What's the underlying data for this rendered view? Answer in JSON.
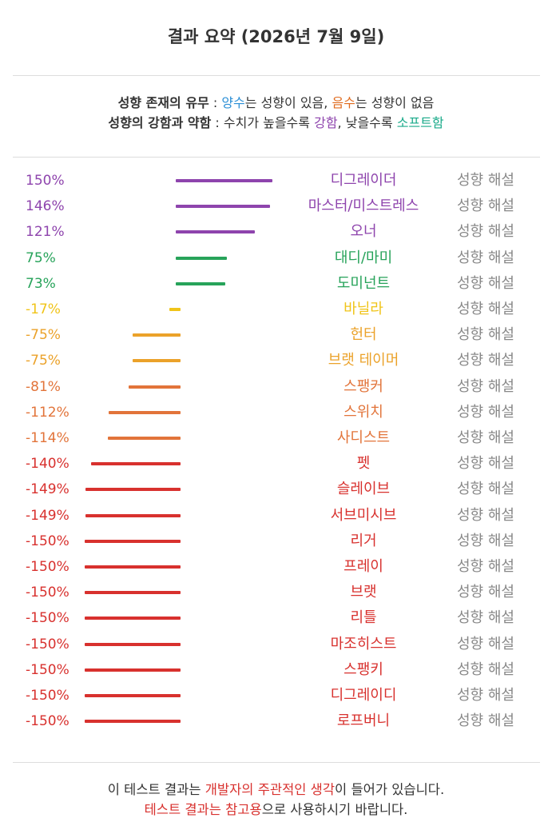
{
  "header": {
    "title": "결과 요약 (2026년 7월 9일)"
  },
  "legend": {
    "line1": {
      "label": "성향 존재의 유무",
      "sep": " : ",
      "positive": "양수",
      "positive_desc": "는 성향이 있음, ",
      "negative": "음수",
      "negative_desc": "는 성향이 없음"
    },
    "line2": {
      "label": "성향의 강함과 약함",
      "sep": " : ",
      "desc1": "수치가 높을수록 ",
      "strong": "강함",
      "desc2": ", 낮을수록 ",
      "soft": "소프트함"
    }
  },
  "explain_label": "성향 해설",
  "chart_data": {
    "type": "bar",
    "orientation": "horizontal-diverging",
    "categories": [
      "디그레이더",
      "마스터/미스트레스",
      "오너",
      "대디/마미",
      "도미넌트",
      "바닐라",
      "헌터",
      "브랫 테이머",
      "스팽커",
      "스위치",
      "사디스트",
      "펫",
      "슬레이브",
      "서브미시브",
      "리거",
      "프레이",
      "브랫",
      "리틀",
      "마조히스트",
      "스팽키",
      "디그레이디",
      "로프버니"
    ],
    "labels": [
      "150%",
      "146%",
      "121%",
      "75%",
      "73%",
      "-17%",
      "-75%",
      "-75%",
      "-81%",
      "-112%",
      "-114%",
      "-140%",
      "-149%",
      "-149%",
      "-150%",
      "-150%",
      "-150%",
      "-150%",
      "-150%",
      "-150%",
      "-150%",
      "-150%"
    ],
    "values": [
      150,
      146,
      121,
      75,
      73,
      -17,
      -75,
      -75,
      -81,
      -112,
      -114,
      -140,
      -149,
      -149,
      -150,
      -150,
      -150,
      -150,
      -150,
      -150,
      -150,
      -150
    ],
    "colors": [
      "#8e44ad",
      "#8e44ad",
      "#8e44ad",
      "#27a35a",
      "#27a35a",
      "#f0c419",
      "#eba22a",
      "#eba22a",
      "#e2743a",
      "#e2743a",
      "#e2743a",
      "#d8312e",
      "#d8312e",
      "#d8312e",
      "#d8312e",
      "#d8312e",
      "#d8312e",
      "#d8312e",
      "#d8312e",
      "#d8312e",
      "#d8312e",
      "#d8312e"
    ],
    "range": [
      -150,
      150
    ],
    "unit": "%"
  },
  "footer": {
    "line1": {
      "a": "이 테스트 결과는 ",
      "b": "개발자의 주관적인 생각",
      "c": "이 들어가 있습니다."
    },
    "line2": {
      "a": "테스트 결과는 참고용",
      "b": "으로 사용하시기 바랍니다."
    }
  }
}
